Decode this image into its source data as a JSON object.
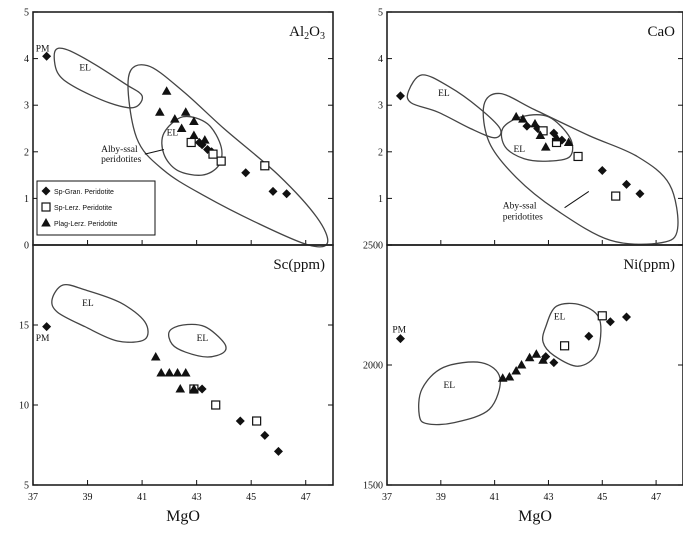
{
  "colors": {
    "ink": "#111111",
    "field_line": "#444444",
    "background": "#ffffff"
  },
  "legend": {
    "items": [
      {
        "marker": "diamond",
        "label": "Sp-Gran. Peridotite"
      },
      {
        "marker": "square",
        "label": "Sp-Lerz. Peridotite"
      },
      {
        "marker": "triangle",
        "label": "Plag-Lerz. Peridotite"
      }
    ]
  },
  "chart_data": [
    {
      "type": "scatter",
      "title": "Al2O3",
      "xlabel": "",
      "ylabel": "",
      "xlim": [
        37,
        48
      ],
      "ylim": [
        0,
        5
      ],
      "grid": false,
      "yticks": [
        "0",
        "1",
        "2",
        "3",
        "4",
        "5"
      ],
      "xticks": [],
      "legend": "lower-left",
      "labels": [
        {
          "text": "PM",
          "x": 37.1,
          "y": 4.15
        },
        {
          "text": "EL",
          "x": 38.7,
          "y": 3.75
        },
        {
          "text": "EL",
          "x": 41.9,
          "y": 2.35
        },
        {
          "text": "Alby-ssal",
          "x": 39.5,
          "y": 2.0
        },
        {
          "text": "peridotites",
          "x": 39.5,
          "y": 1.78
        }
      ],
      "fields": [
        {
          "name": "EL",
          "points": [
            [
              37.8,
              4.15
            ],
            [
              38.2,
              4.2
            ],
            [
              39.2,
              3.9
            ],
            [
              40.4,
              3.45
            ],
            [
              41.0,
              3.2
            ],
            [
              40.7,
              2.95
            ],
            [
              39.8,
              3.05
            ],
            [
              38.5,
              3.4
            ],
            [
              37.9,
              3.7
            ]
          ]
        },
        {
          "name": "EL",
          "points": [
            [
              41.8,
              2.4
            ],
            [
              42.5,
              2.75
            ],
            [
              43.4,
              2.6
            ],
            [
              43.9,
              2.1
            ],
            [
              43.8,
              1.7
            ],
            [
              43.2,
              1.5
            ],
            [
              42.3,
              1.6
            ],
            [
              41.8,
              1.95
            ]
          ]
        },
        {
          "name": "Abyssal peridotites",
          "points": [
            [
              40.5,
              3.6
            ],
            [
              41.2,
              3.85
            ],
            [
              42.5,
              3.3
            ],
            [
              44.0,
              2.5
            ],
            [
              46.0,
              1.5
            ],
            [
              47.4,
              0.6
            ],
            [
              47.8,
              0.05
            ],
            [
              47.1,
              0.0
            ],
            [
              45.3,
              0.45
            ],
            [
              43.3,
              1.05
            ],
            [
              41.8,
              1.6
            ],
            [
              40.8,
              2.3
            ]
          ]
        }
      ],
      "series": [
        {
          "marker": "diamond",
          "points": [
            [
              37.5,
              4.05
            ],
            [
              43.1,
              2.2
            ],
            [
              43.2,
              2.15
            ],
            [
              43.4,
              2.05
            ],
            [
              43.55,
              2.0
            ],
            [
              44.8,
              1.55
            ],
            [
              45.8,
              1.15
            ],
            [
              46.3,
              1.1
            ]
          ]
        },
        {
          "marker": "square",
          "points": [
            [
              42.8,
              2.2
            ],
            [
              43.6,
              1.95
            ],
            [
              43.9,
              1.8
            ],
            [
              45.5,
              1.7
            ]
          ]
        },
        {
          "marker": "triangle",
          "points": [
            [
              41.9,
              3.3
            ],
            [
              41.65,
              2.85
            ],
            [
              42.2,
              2.7
            ],
            [
              42.6,
              2.85
            ],
            [
              42.9,
              2.65
            ],
            [
              42.45,
              2.5
            ],
            [
              42.9,
              2.35
            ],
            [
              43.3,
              2.25
            ]
          ]
        }
      ]
    },
    {
      "type": "scatter",
      "title": "CaO",
      "xlabel": "",
      "ylabel": "",
      "xlim": [
        37,
        48
      ],
      "ylim": [
        0,
        5
      ],
      "grid": false,
      "yticks": [
        "1",
        "2",
        "3",
        "4",
        "5"
      ],
      "xticks": [],
      "labels": [
        {
          "text": "EL",
          "x": 38.9,
          "y": 3.2
        },
        {
          "text": "EL",
          "x": 41.7,
          "y": 2.0
        },
        {
          "text": "Aby-ssal",
          "x": 41.3,
          "y": 0.78
        },
        {
          "text": "peridotites",
          "x": 41.3,
          "y": 0.55
        }
      ],
      "fields": [
        {
          "name": "EL",
          "points": [
            [
              37.8,
              3.3
            ],
            [
              38.3,
              3.65
            ],
            [
              39.3,
              3.4
            ],
            [
              40.4,
              2.95
            ],
            [
              41.2,
              2.5
            ],
            [
              41.0,
              2.3
            ],
            [
              40.1,
              2.5
            ],
            [
              38.9,
              2.85
            ],
            [
              37.9,
              3.05
            ]
          ]
        },
        {
          "name": "EL",
          "points": [
            [
              41.3,
              2.5
            ],
            [
              42.0,
              2.75
            ],
            [
              43.0,
              2.75
            ],
            [
              43.8,
              2.3
            ],
            [
              43.8,
              1.9
            ],
            [
              43.0,
              1.8
            ],
            [
              42.1,
              1.85
            ],
            [
              41.4,
              2.1
            ]
          ]
        },
        {
          "name": "Abyssal peridotites",
          "points": [
            [
              40.6,
              3.0
            ],
            [
              41.2,
              3.25
            ],
            [
              42.5,
              2.9
            ],
            [
              44.5,
              2.35
            ],
            [
              46.3,
              1.9
            ],
            [
              47.5,
              1.3
            ],
            [
              47.8,
              0.35
            ],
            [
              47.2,
              0.05
            ],
            [
              45.3,
              0.1
            ],
            [
              43.3,
              0.75
            ],
            [
              41.8,
              1.45
            ],
            [
              40.8,
              2.2
            ]
          ]
        }
      ],
      "series": [
        {
          "marker": "diamond",
          "points": [
            [
              37.5,
              3.2
            ],
            [
              42.2,
              2.55
            ],
            [
              42.6,
              2.5
            ],
            [
              43.2,
              2.4
            ],
            [
              43.5,
              2.25
            ],
            [
              45.0,
              1.6
            ],
            [
              45.9,
              1.3
            ],
            [
              46.4,
              1.1
            ]
          ]
        },
        {
          "marker": "square",
          "points": [
            [
              42.8,
              2.45
            ],
            [
              43.3,
              2.2
            ],
            [
              44.1,
              1.9
            ],
            [
              45.5,
              1.05
            ]
          ]
        },
        {
          "marker": "triangle",
          "points": [
            [
              41.8,
              2.75
            ],
            [
              42.05,
              2.7
            ],
            [
              42.5,
              2.6
            ],
            [
              42.7,
              2.35
            ],
            [
              42.9,
              2.1
            ],
            [
              43.3,
              2.3
            ],
            [
              43.75,
              2.2
            ]
          ]
        }
      ]
    },
    {
      "type": "scatter",
      "title": "Sc(ppm)",
      "xlabel": "MgO",
      "ylabel": "",
      "xlim": [
        37,
        48
      ],
      "ylim": [
        5,
        20
      ],
      "grid": false,
      "yticks": [
        "5",
        "10",
        "15"
      ],
      "xticks": [
        "37",
        "39",
        "41",
        "43",
        "45",
        "47"
      ],
      "labels": [
        {
          "text": "PM",
          "x": 37.1,
          "y": 14.0
        },
        {
          "text": "EL",
          "x": 38.8,
          "y": 16.2
        },
        {
          "text": "EL",
          "x": 43.0,
          "y": 14.0
        }
      ],
      "fields": [
        {
          "name": "EL",
          "points": [
            [
              37.7,
              16.6
            ],
            [
              38.1,
              17.5
            ],
            [
              38.9,
              17.2
            ],
            [
              40.2,
              16.4
            ],
            [
              41.1,
              15.2
            ],
            [
              41.1,
              14.1
            ],
            [
              40.1,
              14.0
            ],
            [
              38.9,
              14.9
            ],
            [
              37.9,
              15.8
            ]
          ]
        },
        {
          "name": "EL",
          "points": [
            [
              42.0,
              14.6
            ],
            [
              42.5,
              15.0
            ],
            [
              43.3,
              14.9
            ],
            [
              44.0,
              13.9
            ],
            [
              44.0,
              13.3
            ],
            [
              43.4,
              13.0
            ],
            [
              42.6,
              13.3
            ],
            [
              42.1,
              13.8
            ]
          ]
        }
      ],
      "series": [
        {
          "marker": "diamond",
          "points": [
            [
              37.5,
              14.9
            ],
            [
              43.2,
              11.0
            ],
            [
              44.6,
              9.0
            ],
            [
              45.5,
              8.1
            ],
            [
              46.0,
              7.1
            ]
          ]
        },
        {
          "marker": "square",
          "points": [
            [
              42.9,
              11.0
            ],
            [
              43.7,
              10.0
            ],
            [
              45.2,
              9.0
            ]
          ]
        },
        {
          "marker": "triangle",
          "points": [
            [
              41.5,
              13.0
            ],
            [
              41.7,
              12.0
            ],
            [
              42.0,
              12.0
            ],
            [
              42.3,
              12.0
            ],
            [
              42.6,
              12.0
            ],
            [
              42.4,
              11.0
            ],
            [
              42.9,
              11.0
            ]
          ]
        }
      ]
    },
    {
      "type": "scatter",
      "title": "Ni(ppm)",
      "xlabel": "MgO",
      "ylabel": "",
      "xlim": [
        37,
        48
      ],
      "ylim": [
        1500,
        2500
      ],
      "grid": false,
      "yticks": [
        "1500",
        "2000",
        "2500"
      ],
      "xticks": [
        "37",
        "39",
        "41",
        "43",
        "45",
        "47"
      ],
      "labels": [
        {
          "text": "PM",
          "x": 37.2,
          "y": 2135
        },
        {
          "text": "EL",
          "x": 39.1,
          "y": 1905
        },
        {
          "text": "EL",
          "x": 43.2,
          "y": 2190
        }
      ],
      "fields": [
        {
          "name": "EL",
          "points": [
            [
              38.2,
              1790
            ],
            [
              38.3,
              1900
            ],
            [
              39.1,
              1990
            ],
            [
              40.5,
              2010
            ],
            [
              41.2,
              1945
            ],
            [
              40.8,
              1815
            ],
            [
              39.5,
              1760
            ],
            [
              38.5,
              1755
            ]
          ]
        },
        {
          "name": "EL",
          "points": [
            [
              42.9,
              2160
            ],
            [
              43.3,
              2245
            ],
            [
              44.2,
              2250
            ],
            [
              44.9,
              2190
            ],
            [
              44.8,
              2050
            ],
            [
              44.1,
              1995
            ],
            [
              43.2,
              2040
            ],
            [
              42.8,
              2095
            ]
          ]
        }
      ],
      "series": [
        {
          "marker": "diamond",
          "points": [
            [
              37.5,
              2110
            ],
            [
              42.9,
              2035
            ],
            [
              43.2,
              2010
            ],
            [
              44.5,
              2120
            ],
            [
              45.3,
              2180
            ],
            [
              45.9,
              2200
            ]
          ]
        },
        {
          "marker": "square",
          "points": [
            [
              43.6,
              2080
            ],
            [
              45.0,
              2205
            ]
          ]
        },
        {
          "marker": "triangle",
          "points": [
            [
              41.3,
              1945
            ],
            [
              41.55,
              1950
            ],
            [
              41.8,
              1975
            ],
            [
              42.0,
              2000
            ],
            [
              42.3,
              2030
            ],
            [
              42.55,
              2045
            ],
            [
              42.8,
              2020
            ]
          ]
        }
      ]
    }
  ]
}
